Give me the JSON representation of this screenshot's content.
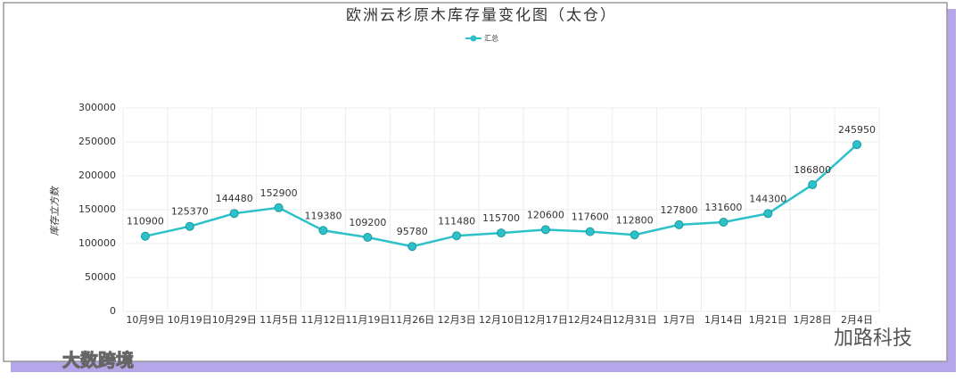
{
  "chart_data": {
    "type": "line",
    "title": "欧洲云杉原木库存量变化图（太仓）",
    "y_label": "库存立方数",
    "categories": [
      "10月9日",
      "10月19日",
      "10月29日",
      "11月5日",
      "11月12日",
      "11月19日",
      "11月26日",
      "12月3日",
      "12月10日",
      "12月17日",
      "12月24日",
      "12月31日",
      "1月7日",
      "1月14日",
      "1月21日",
      "1月28日",
      "2月4日"
    ],
    "series": [
      {
        "name": "汇总",
        "color": "#2cc0c8",
        "values": [
          110900,
          125370,
          144480,
          152900,
          119380,
          109200,
          95780,
          111480,
          115700,
          120600,
          117600,
          112800,
          127800,
          131600,
          144300,
          186800,
          245950
        ]
      }
    ],
    "ylim": [
      0,
      300000
    ],
    "yticks": [
      0,
      50000,
      100000,
      150000,
      200000,
      250000,
      300000
    ],
    "grid": true,
    "legend": "top"
  },
  "watermarks": [
    "大数跨境",
    "加路科技"
  ]
}
